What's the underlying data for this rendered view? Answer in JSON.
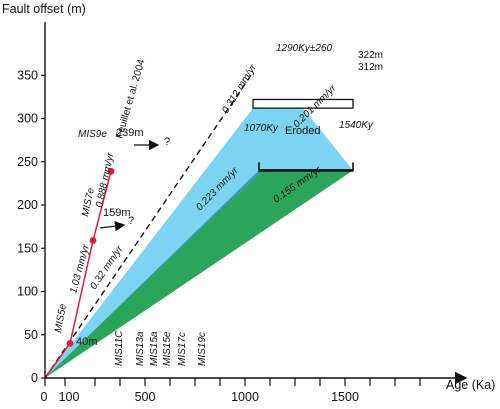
{
  "chart_data": {
    "type": "area",
    "title": "",
    "xlabel": "Age (Ka)",
    "ylabel": "Fault offset (m)",
    "xlim": [
      0,
      2000
    ],
    "ylim": [
      0,
      350
    ],
    "x_tick_labels": [
      "0",
      "100",
      "500",
      "1000",
      "1500"
    ],
    "x_tick_values": [
      0,
      100,
      500,
      1000,
      1500
    ],
    "x_minor_ticks": [
      250,
      375,
      625,
      750,
      875,
      1125,
      1250,
      1375,
      1625,
      1750,
      1875
    ],
    "y_ticks": [
      0,
      50,
      100,
      150,
      200,
      250,
      300,
      350
    ],
    "series": [
      {
        "name": "",
        "fill": "#7dd3f2",
        "polygon": [
          [
            0,
            0
          ],
          [
            1040,
            312
          ],
          [
            1040,
            322
          ],
          [
            1290,
            322
          ],
          [
            1290,
            312
          ],
          [
            1540,
            240
          ],
          [
            1070,
            240
          ]
        ]
      },
      {
        "name": "",
        "fill": "#2ba55a",
        "polygon": [
          [
            0,
            0
          ],
          [
            1070,
            240
          ],
          [
            1540,
            240
          ]
        ]
      },
      {
        "name": "",
        "fill": "#3d98aa",
        "polygon": [
          [
            0,
            0
          ],
          [
            1070,
            240
          ],
          [
            1075,
            235
          ],
          [
            870,
            192
          ]
        ]
      }
    ],
    "reference_line": {
      "label": "Feuillet et al. 2004",
      "style": "dashed",
      "x": [
        0,
        1030
      ],
      "y": [
        0,
        350
      ]
    },
    "mis_points": {
      "x": [
        125,
        240,
        330
      ],
      "y": [
        40,
        159,
        239
      ],
      "labels": [
        "MIS5e",
        "MIS7e",
        "MIS9e"
      ],
      "value_labels": [
        "40m",
        "159m",
        "239m"
      ]
    },
    "mis_stages": [
      "MIS11C",
      "MIS13a",
      "MIS15a",
      "MIS15e",
      "MIS17c",
      "MIS19c"
    ],
    "rate_labels": [
      "1.03 mm/yr",
      "0.888 mm/yr",
      "0.32 mm/yr",
      "0.312 mm/yr",
      "0.201 mm/yr",
      "0.223 mm/yr",
      "0.155 mm/yr"
    ],
    "upper_bar": {
      "label": "1290Ky±260",
      "top_label": "322m",
      "bottom_label": "312m"
    },
    "lower_bar": {
      "label": "Eroded",
      "left_label": "1070Ky",
      "right_label": "1540Ky"
    },
    "question_marks": [
      "?",
      "?"
    ]
  }
}
